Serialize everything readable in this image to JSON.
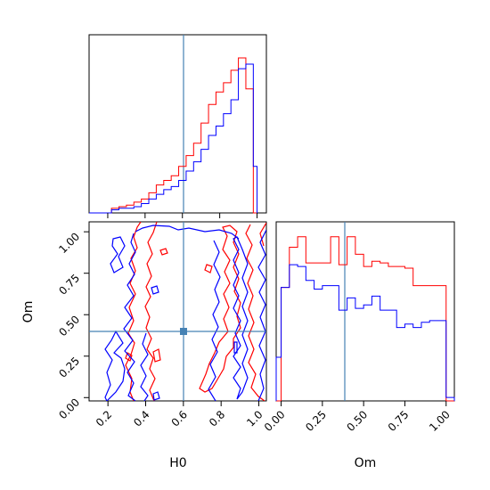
{
  "colors": {
    "red": "#ff0000",
    "blue": "#0000ff",
    "truth": "#4682b4",
    "axes": "#000000"
  },
  "chart_data": {
    "type": "corner",
    "parameters": [
      "H0",
      "Om"
    ],
    "truth": {
      "H0": 0.6,
      "Om": 0.4
    },
    "series_colors": [
      "red",
      "blue"
    ],
    "panels": {
      "h0_hist": {
        "type": "histogram",
        "xlim": [
          0.1,
          1.05
        ],
        "bin_edges": [
          0.1,
          0.14,
          0.18,
          0.22,
          0.26,
          0.3,
          0.34,
          0.38,
          0.42,
          0.46,
          0.5,
          0.54,
          0.58,
          0.62,
          0.66,
          0.7,
          0.74,
          0.78,
          0.82,
          0.86,
          0.9,
          0.94,
          0.98,
          1.0
        ],
        "red": [
          0.0,
          0.0,
          0.0,
          0.03,
          0.04,
          0.05,
          0.07,
          0.09,
          0.13,
          0.18,
          0.21,
          0.24,
          0.3,
          0.37,
          0.45,
          0.58,
          0.7,
          0.78,
          0.84,
          0.92,
          1.0,
          0.8,
          0.0
        ],
        "blue": [
          0.0,
          0.0,
          0.0,
          0.02,
          0.03,
          0.03,
          0.04,
          0.06,
          0.09,
          0.12,
          0.15,
          0.17,
          0.21,
          0.27,
          0.33,
          0.41,
          0.5,
          0.56,
          0.64,
          0.73,
          0.93,
          0.96,
          0.3
        ]
      },
      "om_hist": {
        "type": "histogram",
        "xlim": [
          -0.03,
          1.05
        ],
        "bin_edges": [
          -0.03,
          0.0,
          0.05,
          0.1,
          0.15,
          0.2,
          0.25,
          0.3,
          0.35,
          0.4,
          0.45,
          0.5,
          0.55,
          0.6,
          0.65,
          0.7,
          0.75,
          0.8,
          0.85,
          0.9,
          0.95,
          1.0,
          1.05
        ],
        "red": [
          0.0,
          0.65,
          0.88,
          0.94,
          0.79,
          0.79,
          0.79,
          0.94,
          0.78,
          0.94,
          0.84,
          0.77,
          0.8,
          0.79,
          0.77,
          0.77,
          0.76,
          0.66,
          0.66,
          0.66,
          0.66,
          0.0
        ],
        "blue": [
          0.25,
          0.65,
          0.78,
          0.77,
          0.69,
          0.64,
          0.66,
          0.66,
          0.52,
          0.59,
          0.53,
          0.55,
          0.6,
          0.52,
          0.52,
          0.42,
          0.44,
          0.42,
          0.45,
          0.46,
          0.46,
          0.02
        ]
      },
      "joint": {
        "type": "contour",
        "xlabel": "H0",
        "ylabel": "Om",
        "xlim": [
          0.1,
          1.04
        ],
        "ylim": [
          -0.02,
          1.06
        ],
        "xticks": [
          "0.2",
          "0.4",
          "0.6",
          "0.8",
          "1.0"
        ],
        "yticks": [
          "0.00",
          "0.25",
          "0.50",
          "0.75",
          "1.00"
        ]
      }
    },
    "tick_labels": {
      "h0": [
        "0.2",
        "0.4",
        "0.6",
        "0.8",
        "1.0"
      ],
      "om": [
        "0.00",
        "0.25",
        "0.50",
        "0.75",
        "1.00"
      ]
    },
    "axis_labels": {
      "x_joint": "H0",
      "y_joint": "Om",
      "x_om": "Om"
    }
  }
}
